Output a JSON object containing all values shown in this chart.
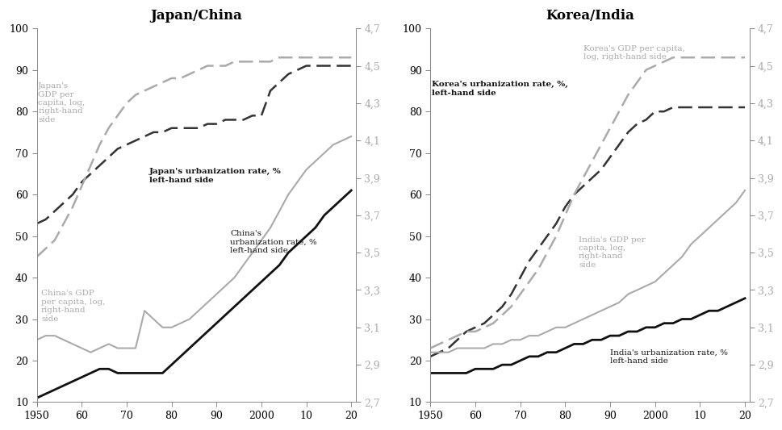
{
  "title_left": "Japan/China",
  "title_right": "Korea/India",
  "x_years": [
    1950,
    1952,
    1954,
    1956,
    1958,
    1960,
    1962,
    1964,
    1966,
    1968,
    1970,
    1972,
    1974,
    1976,
    1978,
    1980,
    1982,
    1984,
    1986,
    1988,
    1990,
    1992,
    1994,
    1996,
    1998,
    2000,
    2002,
    2004,
    2006,
    2008,
    2010,
    2012,
    2014,
    2016,
    2018,
    2020
  ],
  "ylim_left": [
    10,
    100
  ],
  "ylim_right": [
    2.7,
    4.7
  ],
  "xticks": [
    1950,
    1960,
    1970,
    1980,
    1990,
    2000,
    2010,
    2020
  ],
  "xticklabels": [
    "1950",
    "60",
    "70",
    "80",
    "90",
    "2000",
    "10",
    "20"
  ],
  "yticks_left": [
    10,
    20,
    30,
    40,
    50,
    60,
    70,
    80,
    90,
    100
  ],
  "yticks_right": [
    2.7,
    2.9,
    3.1,
    3.3,
    3.5,
    3.7,
    3.9,
    4.1,
    4.3,
    4.5,
    4.7
  ],
  "japan_urban": [
    53,
    54,
    56,
    58,
    60,
    63,
    65,
    67,
    69,
    71,
    72,
    73,
    74,
    75,
    75,
    76,
    76,
    76,
    76,
    77,
    77,
    78,
    78,
    78,
    79,
    79,
    85,
    87,
    89,
    90,
    91,
    91,
    91,
    91,
    91,
    91
  ],
  "japan_gdp_left": [
    45,
    47,
    49,
    53,
    57,
    62,
    67,
    72,
    76,
    79,
    82,
    84,
    85,
    86,
    87,
    88,
    88,
    89,
    90,
    91,
    91,
    91,
    92,
    92,
    92,
    92,
    92,
    93,
    93,
    93,
    93,
    93,
    93,
    93,
    93,
    93
  ],
  "china_urban": [
    11,
    12,
    13,
    14,
    15,
    16,
    17,
    18,
    18,
    17,
    17,
    17,
    17,
    17,
    17,
    19,
    21,
    23,
    25,
    27,
    29,
    31,
    33,
    35,
    37,
    39,
    41,
    43,
    46,
    48,
    50,
    52,
    55,
    57,
    59,
    61
  ],
  "china_gdp_left": [
    25,
    26,
    26,
    25,
    24,
    23,
    22,
    23,
    24,
    23,
    23,
    23,
    32,
    30,
    28,
    28,
    29,
    30,
    32,
    34,
    36,
    38,
    40,
    43,
    46,
    49,
    52,
    56,
    60,
    63,
    66,
    68,
    70,
    72,
    73,
    74
  ],
  "korea_urban": [
    21,
    22,
    23,
    25,
    27,
    28,
    29,
    31,
    33,
    36,
    40,
    44,
    47,
    50,
    53,
    57,
    60,
    62,
    64,
    66,
    69,
    72,
    75,
    77,
    78,
    80,
    80,
    81,
    81,
    81,
    81,
    81,
    81,
    81,
    81,
    81
  ],
  "korea_gdp_left": [
    23,
    24,
    25,
    26,
    27,
    27,
    28,
    29,
    31,
    33,
    36,
    39,
    42,
    46,
    50,
    55,
    60,
    64,
    68,
    72,
    76,
    80,
    84,
    87,
    90,
    91,
    92,
    93,
    93,
    93,
    93,
    93,
    93,
    93,
    93,
    93
  ],
  "india_urban": [
    17,
    17,
    17,
    17,
    17,
    18,
    18,
    18,
    19,
    19,
    20,
    21,
    21,
    22,
    22,
    23,
    24,
    24,
    25,
    25,
    26,
    26,
    27,
    27,
    28,
    28,
    29,
    29,
    30,
    30,
    31,
    32,
    32,
    33,
    34,
    35
  ],
  "india_gdp_left": [
    22,
    22,
    22,
    23,
    23,
    23,
    23,
    24,
    24,
    25,
    25,
    26,
    26,
    27,
    28,
    28,
    29,
    30,
    31,
    32,
    33,
    34,
    36,
    37,
    38,
    39,
    41,
    43,
    45,
    48,
    50,
    52,
    54,
    56,
    58,
    61
  ],
  "color_dark_dashed": "#333333",
  "color_gray_dashed": "#aaaaaa",
  "color_black_solid": "#111111",
  "color_gray_solid": "#aaaaaa",
  "bg_color": "#ffffff",
  "text_color_black": "#111111",
  "text_color_gray": "#aaaaaa"
}
